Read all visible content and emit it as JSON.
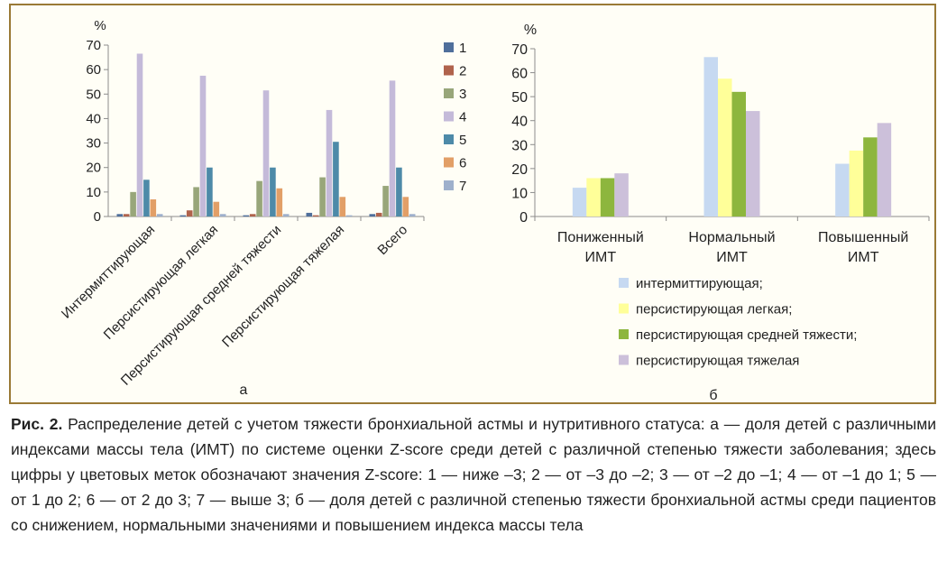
{
  "chart_data": [
    {
      "type": "bar",
      "panel_label": "а",
      "ylabel": "%",
      "ylim": [
        0,
        70
      ],
      "yticks": [
        0,
        10,
        20,
        30,
        40,
        50,
        60,
        70
      ],
      "grid": false,
      "legend_position": "right",
      "categories": [
        "Интермиттирующая",
        "Персистирующая легкая",
        "Персистирующая средней тяжести",
        "Персистирующая тяжелая",
        "Всего"
      ],
      "series": [
        {
          "name": "1",
          "color": "#4f6f9b",
          "values": [
            1,
            0.5,
            0.5,
            1.5,
            1
          ]
        },
        {
          "name": "2",
          "color": "#b0634c",
          "values": [
            1,
            2.5,
            1,
            0.5,
            1.5
          ]
        },
        {
          "name": "3",
          "color": "#98a67a",
          "values": [
            10,
            12,
            14.5,
            16,
            12.5
          ]
        },
        {
          "name": "4",
          "color": "#c4bad9",
          "values": [
            66.5,
            57.5,
            51.5,
            43.5,
            55.5
          ]
        },
        {
          "name": "5",
          "color": "#4d8aa8",
          "values": [
            15,
            20,
            20,
            30.5,
            20
          ]
        },
        {
          "name": "6",
          "color": "#e29f67",
          "values": [
            7,
            6,
            11.5,
            8,
            8
          ]
        },
        {
          "name": "7",
          "color": "#9eb0cc",
          "values": [
            1,
            1,
            1,
            0.5,
            1
          ]
        }
      ]
    },
    {
      "type": "bar",
      "panel_label": "б",
      "ylabel": "%",
      "ylim": [
        0,
        70
      ],
      "yticks": [
        0,
        10,
        20,
        30,
        40,
        50,
        60,
        70
      ],
      "grid": false,
      "legend_position": "bottom",
      "categories": [
        "Пониженный ИМТ",
        "Нормальный ИМТ",
        "Повышенный ИМТ"
      ],
      "series": [
        {
          "name": "интермиттирующая;",
          "color": "#c6d9f1",
          "values": [
            12,
            66.5,
            22
          ]
        },
        {
          "name": "персистирующая легкая;",
          "color": "#ffff99",
          "values": [
            16,
            57.5,
            27.5
          ]
        },
        {
          "name": "персистирующая средней тяжести;",
          "color": "#8db63e",
          "values": [
            16,
            52,
            33
          ]
        },
        {
          "name": "персистирующая тяжелая",
          "color": "#ccc0da",
          "values": [
            18,
            44,
            39
          ]
        }
      ]
    }
  ],
  "caption": {
    "label": "Рис. 2.",
    "text": "Распределение детей с учетом тяжести бронхиальной астмы и нутритивного статуса: а — доля детей с различными индексами массы тела (ИМТ) по системе оценки Z-score среди детей с различной степенью тяжести заболевания; здесь цифры у цветовых меток обозначают значения Z-score: 1 — ниже –3; 2 — от –3 до –2; 3 — от –2 до –1; 4 — от –1 до 1; 5 — от 1 до 2; 6 — от 2 до 3; 7 — выше 3; б — доля детей с различной степенью тяжести бронхиальной астмы среди пациентов со снижением, нормальными значениями и повышением индекса массы тела"
  },
  "colors": {
    "panel_border": "#9a7a36",
    "panel_background": "#fffef6",
    "axis": "#8c8c8c"
  }
}
